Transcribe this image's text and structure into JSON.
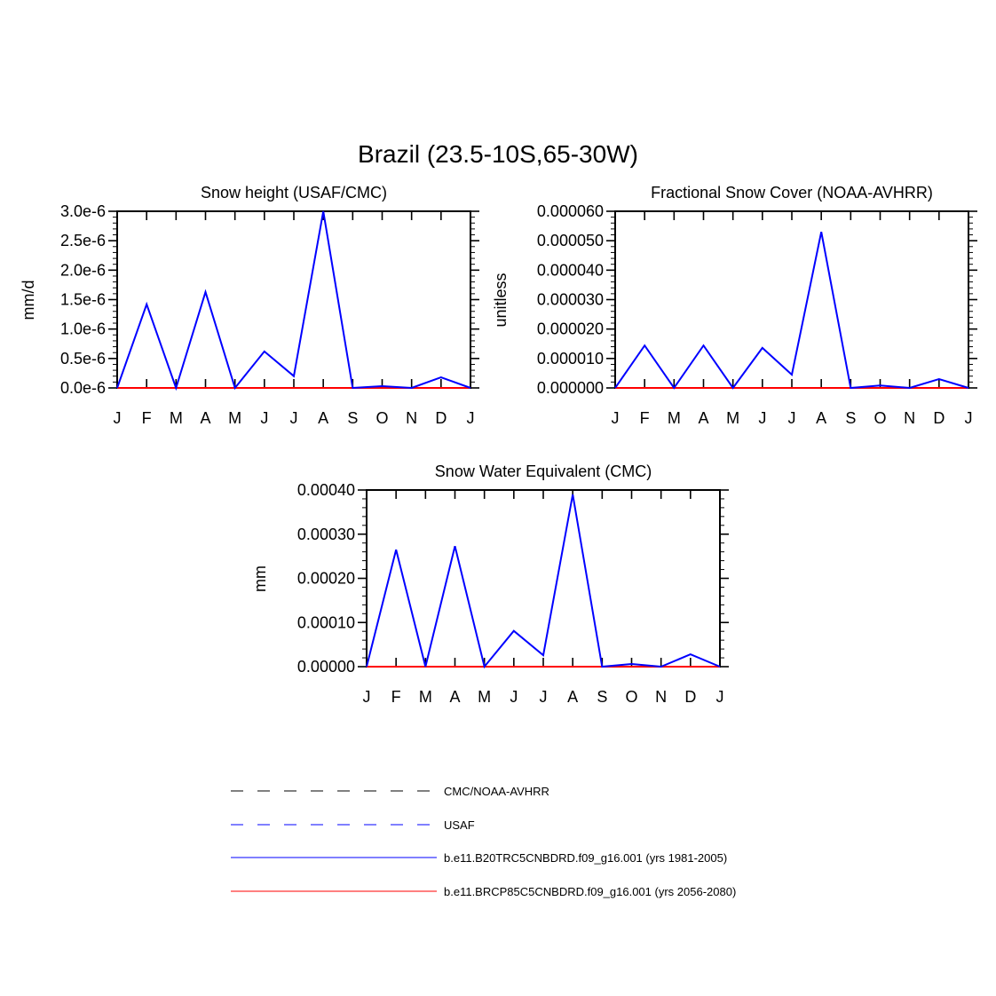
{
  "title": "Brazil (23.5-10S,65-30W)",
  "colors": {
    "cmc_noaa_avhrr": "#000000",
    "usaf": "#0000ff",
    "historical": "#0000ff",
    "future": "#ff0000"
  },
  "legend": [
    {
      "label": "CMC/NOAA-AVHRR",
      "style": "dashed",
      "color": "#000000"
    },
    {
      "label": "USAF",
      "style": "dashed",
      "color": "#0000ff"
    },
    {
      "label": "b.e11.B20TRC5CNBDRD.f09_g16.001 (yrs 1981-2005)",
      "style": "solid",
      "color": "#0000ff"
    },
    {
      "label": "b.e11.BRCP85C5CNBDRD.f09_g16.001 (yrs 2056-2080)",
      "style": "solid",
      "color": "#ff0000"
    }
  ],
  "chart_data": [
    {
      "type": "line",
      "title": "Snow height (USAF/CMC)",
      "xlabel": "",
      "ylabel": "mm/d",
      "categories": [
        "J",
        "F",
        "M",
        "A",
        "M",
        "J",
        "J",
        "A",
        "S",
        "O",
        "N",
        "D",
        "J"
      ],
      "ylim": [
        0,
        3e-06
      ],
      "yticks": [
        "0.0e-6",
        "0.5e-6",
        "1.0e-6",
        "1.5e-6",
        "2.0e-6",
        "2.5e-6",
        "3.0e-6"
      ],
      "grid": false,
      "series": [
        {
          "values": [
            0,
            1.42e-06,
            0,
            1.63e-06,
            0,
            6.2e-07,
            2e-07,
            3e-06,
            0,
            3e-08,
            0,
            1.8e-07,
            0
          ],
          "color": "#0000ff"
        },
        {
          "values": [
            0,
            0,
            0,
            0,
            0,
            0,
            0,
            0,
            0,
            0,
            0,
            0,
            0
          ],
          "color": "#ff0000"
        }
      ]
    },
    {
      "type": "line",
      "title": "Fractional Snow Cover (NOAA-AVHRR)",
      "xlabel": "",
      "ylabel": "unitless",
      "categories": [
        "J",
        "F",
        "M",
        "A",
        "M",
        "J",
        "J",
        "A",
        "S",
        "O",
        "N",
        "D",
        "J"
      ],
      "ylim": [
        0,
        6e-05
      ],
      "yticks": [
        "0.000000",
        "0.000010",
        "0.000020",
        "0.000030",
        "0.000040",
        "0.000050",
        "0.000060"
      ],
      "grid": false,
      "series": [
        {
          "values": [
            0,
            1.44e-05,
            0,
            1.44e-05,
            0,
            1.36e-05,
            4.5e-06,
            5.3e-05,
            0,
            8e-07,
            0,
            3e-06,
            0
          ],
          "color": "#0000ff"
        },
        {
          "values": [
            0,
            0,
            0,
            0,
            0,
            0,
            0,
            0,
            0,
            0,
            0,
            0,
            0
          ],
          "color": "#ff0000"
        }
      ]
    },
    {
      "type": "line",
      "title": "Snow Water Equivalent (CMC)",
      "xlabel": "",
      "ylabel": "mm",
      "categories": [
        "J",
        "F",
        "M",
        "A",
        "M",
        "J",
        "J",
        "A",
        "S",
        "O",
        "N",
        "D",
        "J"
      ],
      "ylim": [
        0,
        0.0004
      ],
      "yticks": [
        "0.00000",
        "0.00010",
        "0.00020",
        "0.00030",
        "0.00040"
      ],
      "grid": false,
      "series": [
        {
          "values": [
            0,
            0.000265,
            0,
            0.000273,
            0,
            8.1e-05,
            2.6e-05,
            0.00039,
            0,
            6e-06,
            0,
            2.8e-05,
            0
          ],
          "color": "#0000ff"
        },
        {
          "values": [
            0,
            0,
            0,
            0,
            0,
            0,
            0,
            0,
            0,
            0,
            0,
            0,
            0
          ],
          "color": "#ff0000"
        }
      ]
    }
  ]
}
